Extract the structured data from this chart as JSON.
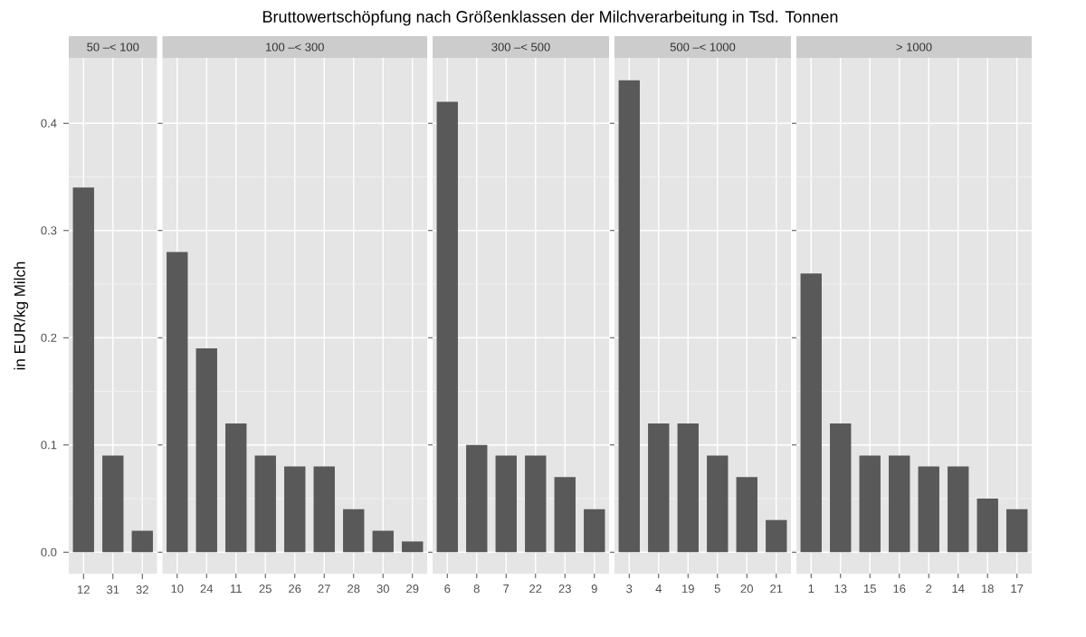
{
  "chart_data": [
    {
      "type": "bar",
      "title": "50 –< 100",
      "annotations": [
        "Bruttowertschöpfung nach Größenklassen der Milchverarbeitung in Tsd. Tonnen"
      ],
      "ylabel": "in EUR/kg Milch",
      "categories": [
        "12",
        "31",
        "32"
      ],
      "values": [
        0.34,
        0.09,
        0.02
      ],
      "color": "#595959",
      "ylim": [
        -0.02,
        0.461
      ],
      "yticks": [
        {
          "value": 0,
          "label": "0.0"
        },
        0.1,
        0.2,
        0.3,
        0.4
      ],
      "grid": true
    },
    {
      "type": "bar",
      "title": "100 –< 300",
      "categories": [
        "10",
        "24",
        "11",
        "25",
        "26",
        "27",
        "28",
        "30",
        "29"
      ],
      "values": [
        0.28,
        0.19,
        0.12,
        0.09,
        0.08,
        0.08,
        0.04,
        0.02,
        0.01
      ],
      "color": "#595959",
      "ylim": [
        -0.02,
        0.461
      ],
      "yticks": [
        0,
        0.1,
        0.2,
        0.3,
        0.4
      ],
      "grid": true,
      "tick_labels": "x"
    },
    {
      "type": "bar",
      "title": "300 –< 500",
      "categories": [
        "6",
        "8",
        "7",
        "22",
        "23",
        "9"
      ],
      "values": [
        0.42,
        0.1,
        0.09,
        0.09,
        0.07,
        0.04
      ],
      "color": "#595959",
      "ylim": [
        -0.02,
        0.461
      ],
      "yticks": [
        0,
        0.1,
        0.2,
        0.3,
        0.4
      ],
      "grid": true,
      "tick_labels": "x"
    },
    {
      "type": "bar",
      "title": "500 –< 1000",
      "categories": [
        "3",
        "4",
        "19",
        "5",
        "20",
        "21"
      ],
      "values": [
        0.44,
        0.12,
        0.12,
        0.09,
        0.07,
        0.03
      ],
      "color": "#595959",
      "ylim": [
        -0.02,
        0.461
      ],
      "yticks": [
        0,
        0.1,
        0.2,
        0.3,
        0.4
      ],
      "grid": true,
      "tick_labels": "x"
    },
    {
      "type": "bar",
      "title": "> 1000",
      "categories": [
        "1",
        "13",
        "15",
        "16",
        "2",
        "14",
        "18",
        "17"
      ],
      "values": [
        0.26,
        0.12,
        0.09,
        0.09,
        0.08,
        0.08,
        0.05,
        0.04
      ],
      "color": "#595959",
      "ylim": [
        -0.02,
        0.461
      ],
      "yticks": [
        0,
        0.1,
        0.2,
        0.3,
        0.4
      ],
      "grid": true,
      "tick_labels": "x"
    }
  ]
}
